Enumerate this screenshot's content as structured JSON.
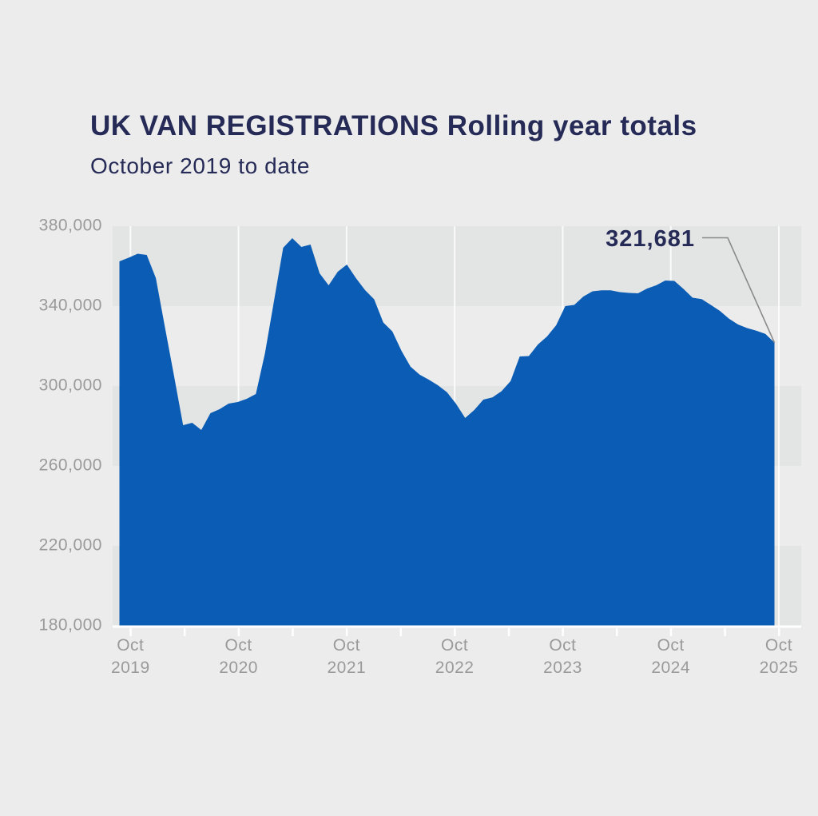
{
  "header": {
    "title": "UK VAN REGISTRATIONS Rolling year totals",
    "subtitle": "October 2019 to date"
  },
  "annotation": {
    "value": "321,681"
  },
  "y_axis": {
    "ticks": [
      "380,000",
      "340,000",
      "300,000",
      "260,000",
      "220,000",
      "180,000"
    ]
  },
  "x_axis": {
    "ticks": [
      {
        "line1": "Oct",
        "line2": "2019"
      },
      {
        "line1": "Oct",
        "line2": "2020"
      },
      {
        "line1": "Oct",
        "line2": "2021"
      },
      {
        "line1": "Oct",
        "line2": "2022"
      },
      {
        "line1": "Oct",
        "line2": "2023"
      },
      {
        "line1": "Oct",
        "line2": "2024"
      },
      {
        "line1": "Oct",
        "line2": "2025"
      }
    ]
  },
  "colors": {
    "background": "#ECECEC",
    "band_dark": "#E3E4E4",
    "band_light": "#ECECEC",
    "series_blue": "#0A5CB5",
    "navy_text": "#252B56",
    "axis_gray": "#9A9A9A",
    "callout_gray": "#8A8A8A",
    "axis_white": "#FFFFFF"
  },
  "chart_data": {
    "type": "area",
    "title": "UK VAN REGISTRATIONS Rolling year totals",
    "subtitle": "October 2019 to date",
    "x_start": "Oct 2019",
    "x_end": "Oct 2025",
    "frequency": "monthly",
    "ylim": [
      180000,
      380000
    ],
    "y_tick_step": 40000,
    "x_tick_labels": [
      "Oct 2019",
      "Oct 2020",
      "Oct 2021",
      "Oct 2022",
      "Oct 2023",
      "Oct 2024",
      "Oct 2025"
    ],
    "minor_x_ticks": "every 6 months",
    "grid": "alternating horizontal bands, white vertical year lines",
    "legend": "none",
    "last_point_label": "321,681",
    "values": [
      362400,
      364200,
      366200,
      365600,
      354000,
      329600,
      305200,
      280400,
      281600,
      278000,
      286400,
      288400,
      291200,
      292000,
      293600,
      296000,
      316400,
      342800,
      369200,
      374000,
      369600,
      370800,
      356400,
      350400,
      357200,
      360800,
      354000,
      348000,
      343400,
      331800,
      327300,
      317600,
      309700,
      305700,
      303200,
      300400,
      296900,
      291100,
      284000,
      288000,
      293200,
      294300,
      297400,
      302500,
      314800,
      315000,
      320800,
      324800,
      330400,
      340000,
      340600,
      344800,
      347400,
      347900,
      347900,
      347000,
      346600,
      346400,
      348800,
      350400,
      352800,
      352600,
      348600,
      344200,
      343500,
      340600,
      337600,
      333700,
      330800,
      329000,
      327700,
      326100,
      321681
    ]
  }
}
